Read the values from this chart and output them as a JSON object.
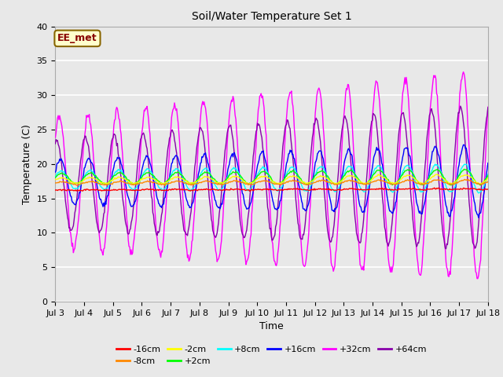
{
  "title": "Soil/Water Temperature Set 1",
  "xlabel": "Time",
  "ylabel": "Temperature (C)",
  "xlim": [
    0,
    15
  ],
  "ylim": [
    0,
    40
  ],
  "yticks": [
    0,
    5,
    10,
    15,
    20,
    25,
    30,
    35,
    40
  ],
  "xtick_labels": [
    "Jul 3",
    "Jul 4",
    "Jul 5",
    "Jul 6",
    "Jul 7",
    "Jul 8",
    "Jul 9",
    "Jul 10",
    "Jul 11",
    "Jul 12",
    "Jul 13",
    "Jul 14",
    "Jul 15",
    "Jul 16",
    "Jul 17",
    "Jul 18"
  ],
  "fig_bg_color": "#e8e8e8",
  "plot_bg_color": "#e8e8e8",
  "annotation_text": "EE_met",
  "annotation_bg": "#ffffcc",
  "annotation_border": "#886600",
  "annotation_text_color": "#880000",
  "series": {
    "-16cm": {
      "color": "#ff0000",
      "base": 16.2,
      "amp": 0.05,
      "phase": 0.0,
      "trend": 0.011,
      "noise": 0.05
    },
    "-8cm": {
      "color": "#ff8800",
      "base": 17.2,
      "amp": 0.2,
      "phase": 0.1,
      "trend": 0.013,
      "noise": 0.05
    },
    "-2cm": {
      "color": "#ffff00",
      "base": 17.6,
      "amp": 0.4,
      "phase": 0.15,
      "trend": 0.014,
      "noise": 0.05
    },
    "+2cm": {
      "color": "#00ff00",
      "base": 17.9,
      "amp": 0.7,
      "phase": 0.2,
      "trend": 0.015,
      "noise": 0.06
    },
    "+8cm": {
      "color": "#00ffff",
      "base": 17.7,
      "amp": 1.3,
      "phase": 0.3,
      "trend": 0.015,
      "noise": 0.07
    },
    "+16cm": {
      "color": "#0000ff",
      "base": 17.4,
      "amp": 3.2,
      "phase": 0.5,
      "trend": 0.016,
      "noise": 0.15
    },
    "+32cm": {
      "color": "#ff00ff",
      "base": 17.2,
      "amp": 9.5,
      "phase": 0.7,
      "trend": 0.09,
      "noise": 0.3
    },
    "+64cm": {
      "color": "#8800aa",
      "base": 17.0,
      "amp": 6.5,
      "phase": 1.3,
      "trend": 0.07,
      "noise": 0.2
    }
  },
  "legend_order": [
    "-16cm",
    "-8cm",
    "-2cm",
    "+2cm",
    "+8cm",
    "+16cm",
    "+32cm",
    "+64cm"
  ]
}
